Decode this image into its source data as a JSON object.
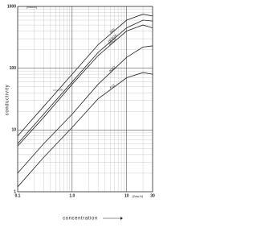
{
  "chart_data": {
    "type": "line",
    "x_label": "concentration",
    "y_label": "conductivity",
    "y_unit": "[mS/cm]",
    "x_unit": "[Gew.%]",
    "log_x": true,
    "log_y": true,
    "grid": true,
    "minor_grid": true,
    "xlim": [
      0.1,
      30
    ],
    "ylim": [
      1,
      1000
    ],
    "xticks": [
      0.1,
      {
        "value": 1,
        "label": "1.0"
      },
      10,
      30
    ],
    "yticks": [
      1,
      10,
      100,
      1000
    ],
    "x": [
      0.1,
      0.3,
      1,
      3,
      10,
      20,
      30
    ],
    "series": [
      {
        "name": "HCl",
        "color": "#222",
        "values": [
          8,
          24,
          80,
          240,
          600,
          750,
          700
        ]
      },
      {
        "name": "H2SO4",
        "color": "#222",
        "values": [
          6,
          18,
          60,
          180,
          450,
          600,
          580
        ]
      },
      {
        "name": "HNO3",
        "color": "#222",
        "values": [
          5.5,
          16,
          55,
          160,
          400,
          500,
          450
        ]
      },
      {
        "name": "NaCl",
        "color": "#222",
        "values": [
          2,
          6,
          18,
          55,
          150,
          220,
          230
        ]
      },
      {
        "name": "KCl",
        "color": "#222",
        "values": [
          1.2,
          3.6,
          11,
          32,
          70,
          85,
          80
        ]
      }
    ]
  }
}
